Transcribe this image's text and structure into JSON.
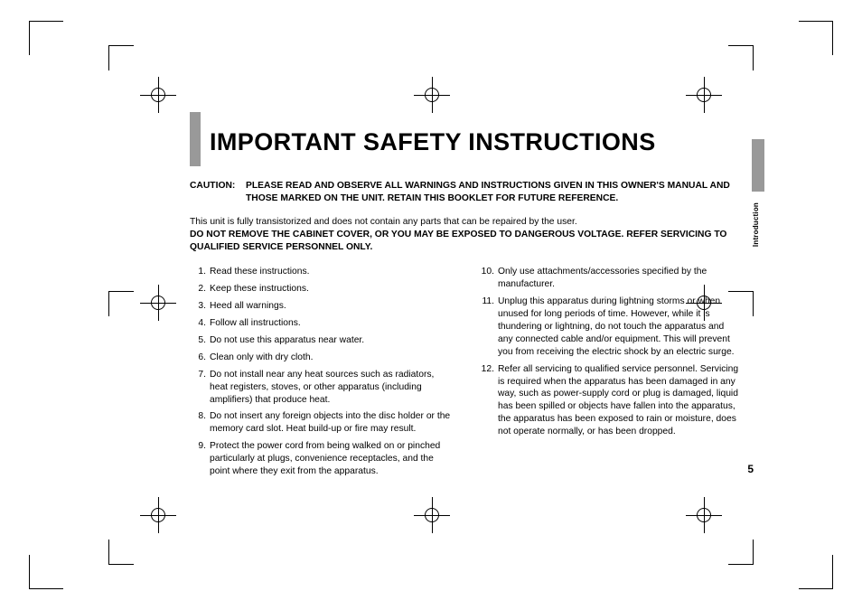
{
  "title": "IMPORTANT SAFETY INSTRUCTIONS",
  "caution_label": "CAUTION:",
  "caution_text": "PLEASE READ AND OBSERVE ALL WARNINGS AND INSTRUCTIONS GIVEN IN THIS OWNER'S MANUAL AND THOSE MARKED ON THE UNIT. RETAIN THIS BOOKLET FOR FUTURE REFERENCE.",
  "intro_plain": "This unit is fully transistorized and does not contain any parts that can be repaired by the user.",
  "intro_bold": "DO NOT REMOVE THE CABINET COVER, OR YOU MAY BE EXPOSED TO DANGEROUS VOLTAGE. REFER SERVICING TO QUALIFIED SERVICE PERSONNEL ONLY.",
  "left_items": [
    {
      "n": "1.",
      "t": "Read these instructions."
    },
    {
      "n": "2.",
      "t": "Keep these instructions."
    },
    {
      "n": "3.",
      "t": "Heed all warnings."
    },
    {
      "n": "4.",
      "t": "Follow all instructions."
    },
    {
      "n": "5.",
      "t": "Do not use this apparatus near water."
    },
    {
      "n": "6.",
      "t": "Clean only with dry cloth."
    },
    {
      "n": "7.",
      "t": "Do not install near any heat sources such as radiators, heat registers, stoves, or other apparatus (including amplifiers) that produce heat."
    },
    {
      "n": "8.",
      "t": "Do not insert any foreign objects into the disc holder or the memory card slot. Heat build-up or fire may result."
    },
    {
      "n": "9.",
      "t": "Protect the power cord from being walked on or pinched particularly at plugs, convenience receptacles, and the point where they exit from the apparatus."
    }
  ],
  "right_items": [
    {
      "n": "10.",
      "t": "Only use attachments/accessories specified by the manufacturer."
    },
    {
      "n": "11.",
      "t": "Unplug this apparatus during lightning storms or when unused for long periods of time. However, while it is thundering or lightning, do not touch the apparatus and any connected cable and/or equipment. This will prevent you from receiving the electric shock by an electric surge."
    },
    {
      "n": "12.",
      "t": "Refer all servicing to qualified service personnel. Servicing is required when the apparatus has been damaged in any way, such as power-supply cord or plug is damaged, liquid has been spilled or objects have fallen into the apparatus, the apparatus has been exposed to rain or moisture, does not operate normally, or has been dropped."
    }
  ],
  "side_label": "Introduction",
  "page_number": "5",
  "colors": {
    "accent_gray": "#999999",
    "text": "#000000",
    "bg": "#ffffff"
  }
}
